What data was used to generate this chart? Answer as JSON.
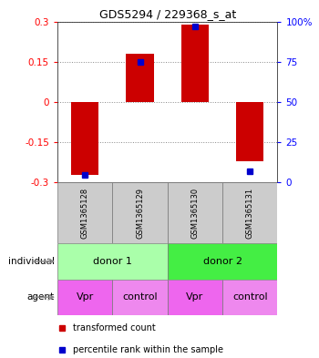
{
  "title": "GDS5294 / 229368_s_at",
  "samples": [
    "GSM1365128",
    "GSM1365129",
    "GSM1365130",
    "GSM1365131"
  ],
  "bar_values": [
    -0.27,
    0.18,
    0.29,
    -0.22
  ],
  "percentile_values": [
    5,
    75,
    97,
    7
  ],
  "bar_color": "#cc0000",
  "marker_color": "#0000cc",
  "ylim_left": [
    -0.3,
    0.3
  ],
  "ylim_right": [
    0,
    100
  ],
  "yticks_left": [
    -0.3,
    -0.15,
    0,
    0.15,
    0.3
  ],
  "yticks_right": [
    0,
    25,
    50,
    75,
    100
  ],
  "ytick_labels_left": [
    "-0.3",
    "-0.15",
    "0",
    "0.15",
    "0.3"
  ],
  "ytick_labels_right": [
    "0",
    "25",
    "50",
    "75",
    "100%"
  ],
  "individual_labels": [
    "donor 1",
    "donor 2"
  ],
  "individual_colors": [
    "#aaffaa",
    "#44ee44"
  ],
  "agent_labels": [
    "Vpr",
    "control",
    "Vpr",
    "control"
  ],
  "agent_colors": [
    "#ee66ee",
    "#ee88ee",
    "#ee66ee",
    "#ee88ee"
  ],
  "row_label_individual": "individual",
  "row_label_agent": "agent",
  "legend_red_label": "transformed count",
  "legend_blue_label": "percentile rank within the sample",
  "background_color": "#ffffff",
  "bar_width": 0.5,
  "gray_color": "#cccccc"
}
